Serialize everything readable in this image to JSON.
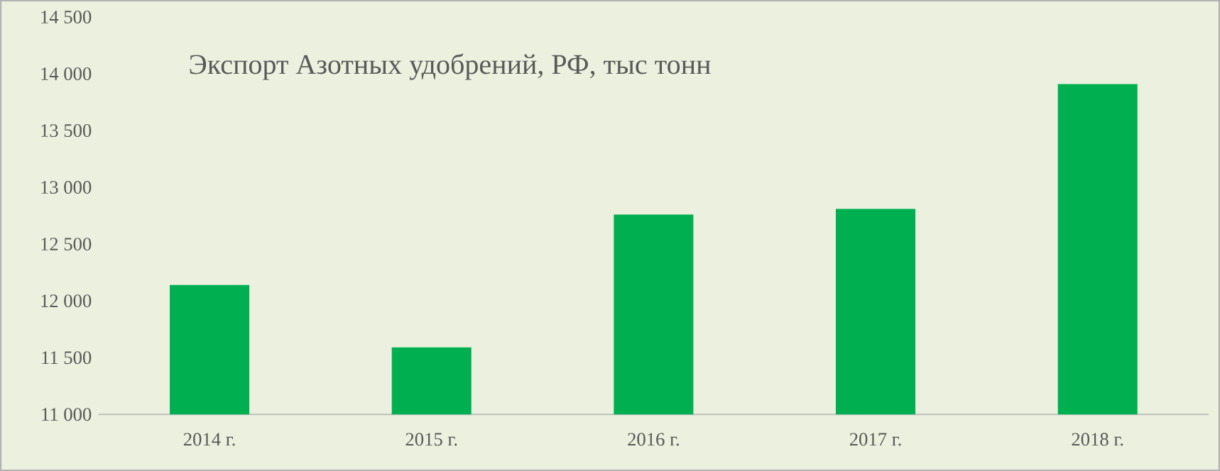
{
  "chart_data": {
    "type": "bar",
    "title": "Экспорт Азотных удобрений, РФ, тыс тонн",
    "categories": [
      "2014 г.",
      "2015 г.",
      "2016 г.",
      "2017 г.",
      "2018 г."
    ],
    "values": [
      12140,
      11590,
      12760,
      12810,
      13910
    ],
    "color": "#00b050",
    "ylim": [
      11000,
      14500
    ],
    "yticks": [
      {
        "value": 11000,
        "label": "11 000"
      },
      {
        "value": 11500,
        "label": "11 500"
      },
      {
        "value": 12000,
        "label": "12 000"
      },
      {
        "value": 12500,
        "label": "12 500"
      },
      {
        "value": 13000,
        "label": "13 000"
      },
      {
        "value": 13500,
        "label": "13 500"
      },
      {
        "value": 14000,
        "label": "14 000"
      },
      {
        "value": 14500,
        "label": "14 500"
      }
    ]
  }
}
